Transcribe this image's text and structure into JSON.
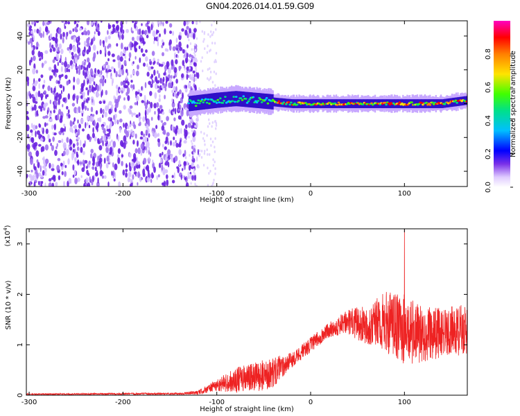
{
  "page_title": "GN04.2026.014.01.59.G09",
  "colors": {
    "snr_line": "#ee2222",
    "frame": "#000000"
  },
  "chart_data": [
    {
      "type": "heatmap",
      "title": "GN04.2026.014.01.59.G09",
      "xlabel": "Height of straight line (km)",
      "ylabel": "Frequency (Hz)",
      "xlim": [
        -303,
        167
      ],
      "ylim": [
        -49,
        49
      ],
      "x_ticks": [
        "-300",
        "-200",
        "-100",
        "0",
        "100"
      ],
      "x_tick_values": [
        -300,
        -200,
        -100,
        0,
        100
      ],
      "y_ticks": [
        "40",
        "20",
        "0",
        "-20",
        "-40"
      ],
      "y_tick_values": [
        40,
        20,
        0,
        -20,
        -40
      ],
      "colorbar": {
        "label": "Normalized spectral amplitude",
        "range": [
          0,
          1
        ],
        "ticks": [
          "0.8",
          "0.6",
          "0.4",
          "0.2",
          "0.0"
        ],
        "tick_values": [
          0.8,
          0.6,
          0.4,
          0.2,
          0.0
        ],
        "colormap": [
          "#ffffff",
          "#c8a0ff",
          "#6020e0",
          "#0000ff",
          "#00c8ff",
          "#00e080",
          "#40ff00",
          "#ffe000",
          "#ff8000",
          "#ff0000",
          "#ff00c8"
        ]
      },
      "regions": [
        {
          "x_range": [
            -303,
            -130
          ],
          "description_level": 0.15,
          "freq_range": [
            -49,
            49
          ]
        },
        {
          "x_range": [
            -130,
            167
          ],
          "description_level": 0.75,
          "freq_range": [
            -5,
            8
          ]
        }
      ],
      "ridge_center_hz": [
        [
          -130,
          0
        ],
        [
          -100,
          2
        ],
        [
          -80,
          3
        ],
        [
          -60,
          2
        ],
        [
          -40,
          1
        ],
        [
          -20,
          0
        ],
        [
          0,
          0
        ],
        [
          20,
          0
        ],
        [
          40,
          0
        ],
        [
          60,
          0
        ],
        [
          80,
          0
        ],
        [
          100,
          0
        ],
        [
          120,
          0
        ],
        [
          140,
          0
        ],
        [
          167,
          2
        ]
      ]
    },
    {
      "type": "line",
      "xlabel": "Height of straight line (km)",
      "ylabel": "SNR (10 * v/v)",
      "y_scale_label": "(x10",
      "y_scale_exp": "4",
      "xlim": [
        -303,
        167
      ],
      "ylim": [
        0,
        3.3
      ],
      "x_ticks": [
        "-300",
        "-200",
        "-100",
        "0",
        "100"
      ],
      "x_tick_values": [
        -300,
        -200,
        -100,
        0,
        100
      ],
      "y_ticks": [
        "3",
        "2",
        "1",
        "0"
      ],
      "y_tick_values": [
        3,
        2,
        1,
        0
      ],
      "envelope": {
        "x": [
          -303,
          -140,
          -120,
          -100,
          -80,
          -60,
          -40,
          -20,
          0,
          20,
          40,
          60,
          80,
          100,
          120,
          140,
          167
        ],
        "mean": [
          0.02,
          0.03,
          0.05,
          0.2,
          0.3,
          0.35,
          0.45,
          0.7,
          1.0,
          1.3,
          1.45,
          1.4,
          1.45,
          1.3,
          1.2,
          1.25,
          1.3
        ],
        "amplitude": [
          0.01,
          0.02,
          0.04,
          0.12,
          0.25,
          0.3,
          0.3,
          0.15,
          0.15,
          0.15,
          0.25,
          0.4,
          0.6,
          0.7,
          0.55,
          0.5,
          0.5
        ],
        "max": 3.3,
        "max_at_x": 100
      }
    }
  ]
}
